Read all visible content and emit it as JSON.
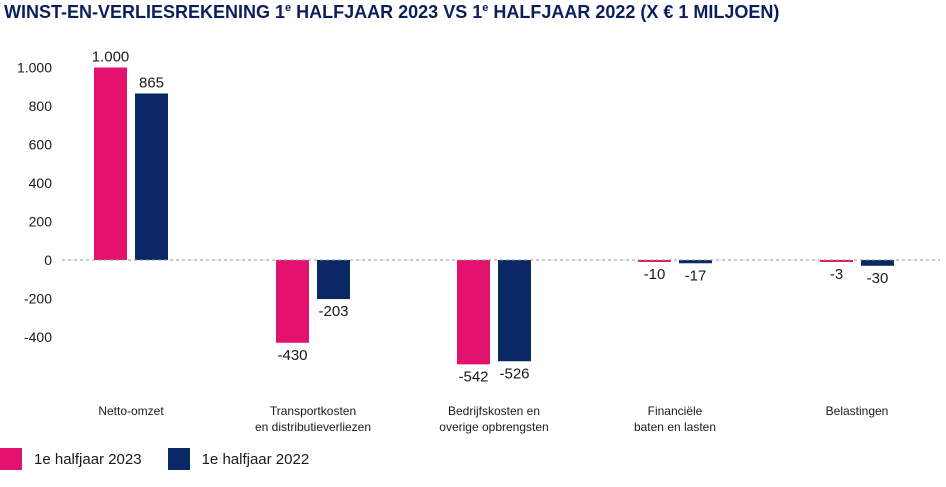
{
  "chart_data": {
    "type": "bar",
    "title_main": "WINST-EN-VERLIESREKENING 1",
    "title_sup1": "e",
    "title_mid": " HALFJAAR 2023 VS 1",
    "title_sup2": "e",
    "title_end": " HALFJAAR 2022 (X € 1 MILJOEN)",
    "categories": [
      [
        "Netto-omzet"
      ],
      [
        "Transportkosten",
        "en distributieverliezen"
      ],
      [
        "Bedrijfskosten en",
        "overige opbrengsten"
      ],
      [
        "Financiële",
        "baten en lasten"
      ],
      [
        "Belastingen"
      ]
    ],
    "series": [
      {
        "name": "1e halfjaar 2023",
        "color": "#e3126f",
        "values": [
          1000,
          -430,
          -542,
          -10,
          -3
        ],
        "labels": [
          "1.000",
          "-430",
          "-542",
          "-10",
          "-3"
        ]
      },
      {
        "name": "1e halfjaar 2022",
        "color": "#0a2766",
        "values": [
          865,
          -203,
          -526,
          -17,
          -30
        ],
        "labels": [
          "865",
          "-203",
          "-526",
          "-17",
          "-30"
        ]
      }
    ],
    "yticks": [
      1000,
      800,
      600,
      400,
      200,
      0,
      -200,
      -400
    ],
    "ytick_labels": [
      "1.000",
      "800",
      "600",
      "400",
      "200",
      "0",
      "-200",
      "-400"
    ],
    "ylim": [
      -560,
      1000
    ],
    "legend_position": "bottom-left",
    "grid": false
  }
}
